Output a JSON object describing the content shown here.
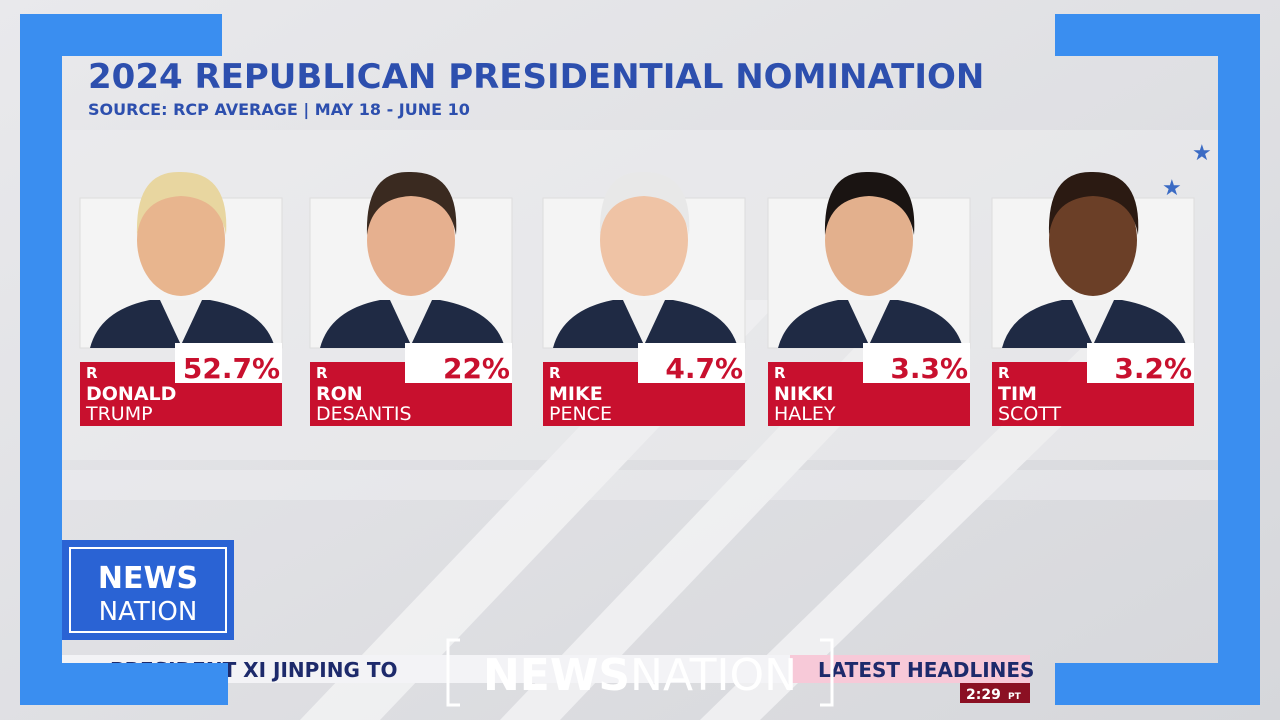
{
  "header": {
    "title": "2024 REPUBLICAN PRESIDENTIAL NOMINATION",
    "subtitle": "SOURCE: RCP AVERAGE | MAY 18 - JUNE 10"
  },
  "candidates": [
    {
      "party": "R",
      "first": "DONALD",
      "last": "TRUMP",
      "percent": "52.7%"
    },
    {
      "party": "R",
      "first": "RON",
      "last": "DESANTIS",
      "percent": "22%"
    },
    {
      "party": "R",
      "first": "MIKE",
      "last": "PENCE",
      "percent": "4.7%"
    },
    {
      "party": "R",
      "first": "NIKKI",
      "last": "HALEY",
      "percent": "3.3%"
    },
    {
      "party": "R",
      "first": "TIM",
      "last": "SCOTT",
      "percent": "3.2%"
    }
  ],
  "corner_logo": {
    "top": "NEWS",
    "bottom": "NATION"
  },
  "ticker": {
    "story": "PRESIDENT XI JINPING TO",
    "section": "LATEST HEADLINES",
    "time": "2:29",
    "zone": "PT"
  },
  "brand": {
    "bold": "NEWS",
    "light": "NATION"
  }
}
